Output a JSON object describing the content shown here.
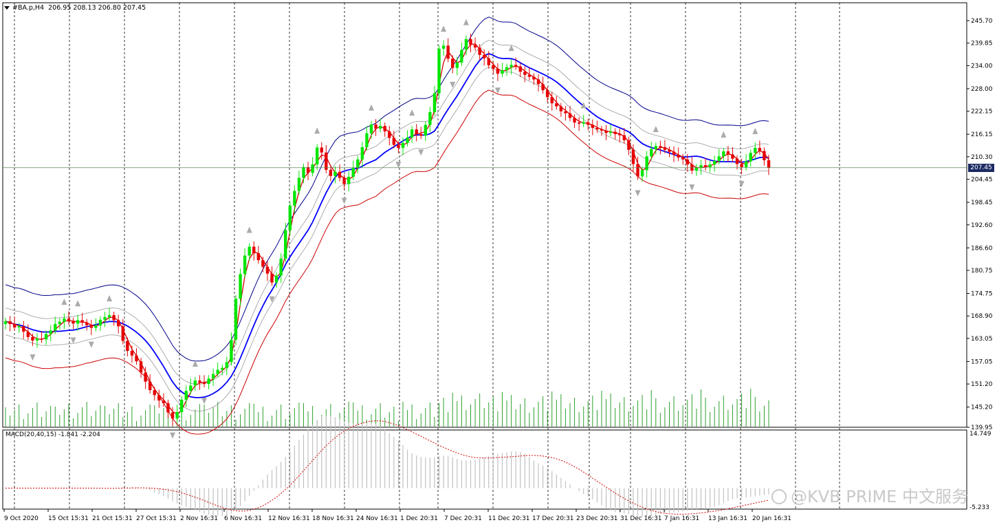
{
  "header": {
    "symbol": "#BA.p,H4",
    "ohlc": "206.95 208.13 206.80 207.45"
  },
  "macd": {
    "label": "MACD(20,40,15) -1.841 -2.204",
    "top_value": "14.749",
    "bottom_value": "-5.233"
  },
  "current_price": "207.45",
  "price_axis": [
    "245.70",
    "239.85",
    "234.00",
    "228.00",
    "222.15",
    "216.15",
    "210.30",
    "204.45",
    "198.45",
    "192.60",
    "186.60",
    "180.75",
    "174.75",
    "168.90",
    "163.05",
    "157.05",
    "151.20",
    "145.20",
    "139.95"
  ],
  "time_axis": [
    "9 Oct 2020",
    "15 Oct 15:31",
    "21 Oct 15:31",
    "27 Oct 15:31",
    "2 Nov 16:31",
    "6 Nov 16:31",
    "12 Nov 16:31",
    "18 Nov 16:31",
    "24 Nov 16:31",
    "1 Dec 20:31",
    "7 Dec 20:31",
    "11 Dec 20:31",
    "17 Dec 20:31",
    "23 Dec 20:31",
    "31 Dec 16:31",
    "7 Jan 16:31",
    "13 Jan 16:31",
    "20 Jan 16:31"
  ],
  "watermark": "@KVB PRIME 中文服务",
  "colors": {
    "bull": "#00e600",
    "bear": "#e60000",
    "band_outer": "#00008b",
    "band_mid": "#0000ff",
    "band_lower": "#cc0000",
    "volume": "#2ca02c"
  },
  "chart_data": {
    "type": "candlestick",
    "title": "#BA.p,H4",
    "ylim": [
      139.95,
      245.7
    ],
    "close": [
      167.5,
      166.8,
      165.9,
      166.2,
      164.8,
      163.4,
      162.5,
      163.0,
      162.8,
      164.2,
      165.1,
      166.8,
      167.4,
      168.2,
      167.5,
      166.9,
      167.8,
      167.2,
      166.5,
      165.8,
      166.4,
      167.9,
      168.6,
      169.1,
      167.8,
      166.2,
      162.4,
      159.8,
      158.6,
      157.1,
      154.2,
      151.8,
      149.6,
      148.3,
      146.9,
      146.2,
      143.8,
      142.2,
      143.9,
      147.1,
      149.4,
      150.8,
      152.1,
      151.6,
      151.2,
      152.6,
      153.8,
      154.9,
      155.4,
      156.9,
      162.7,
      173.4,
      179.8,
      184.6,
      186.9,
      185.2,
      183.4,
      181.7,
      179.9,
      177.6,
      179.4,
      183.8,
      191.2,
      197.6,
      201.4,
      204.8,
      207.6,
      206.1,
      208.3,
      212.7,
      211.4,
      206.9,
      205.3,
      206.4,
      204.8,
      203.2,
      205.1,
      207.4,
      209.6,
      212.8,
      216.4,
      218.7,
      217.6,
      218.3,
      216.9,
      215.2,
      213.4,
      212.6,
      213.9,
      215.3,
      217.4,
      216.2,
      215.8,
      218.6,
      221.9,
      226.8,
      238.4,
      239.2,
      235.8,
      233.4,
      234.8,
      238.1,
      240.9,
      239.4,
      238.7,
      236.8,
      235.9,
      234.1,
      233.2,
      231.9,
      232.8,
      233.6,
      234.2,
      233.8,
      232.4,
      231.6,
      231.1,
      230.4,
      229.2,
      227.6,
      225.8,
      224.2,
      223.4,
      222.1,
      221.6,
      220.4,
      219.2,
      218.9,
      219.3,
      218.6,
      217.8,
      217.4,
      217.1,
      216.5,
      216.8,
      216.2,
      215.9,
      214.6,
      212.1,
      208.4,
      205.2,
      206.8,
      210.4,
      212.3,
      213.1,
      212.8,
      212.1,
      211.6,
      210.8,
      210.1,
      209.6,
      208.3,
      206.7,
      207.5,
      208.1,
      207.6,
      208.3,
      209.2,
      210.4,
      211.7,
      210.9,
      209.8,
      208.4,
      207.6,
      209.1,
      211.3,
      212.6,
      211.8,
      209.4,
      207.45
    ]
  }
}
